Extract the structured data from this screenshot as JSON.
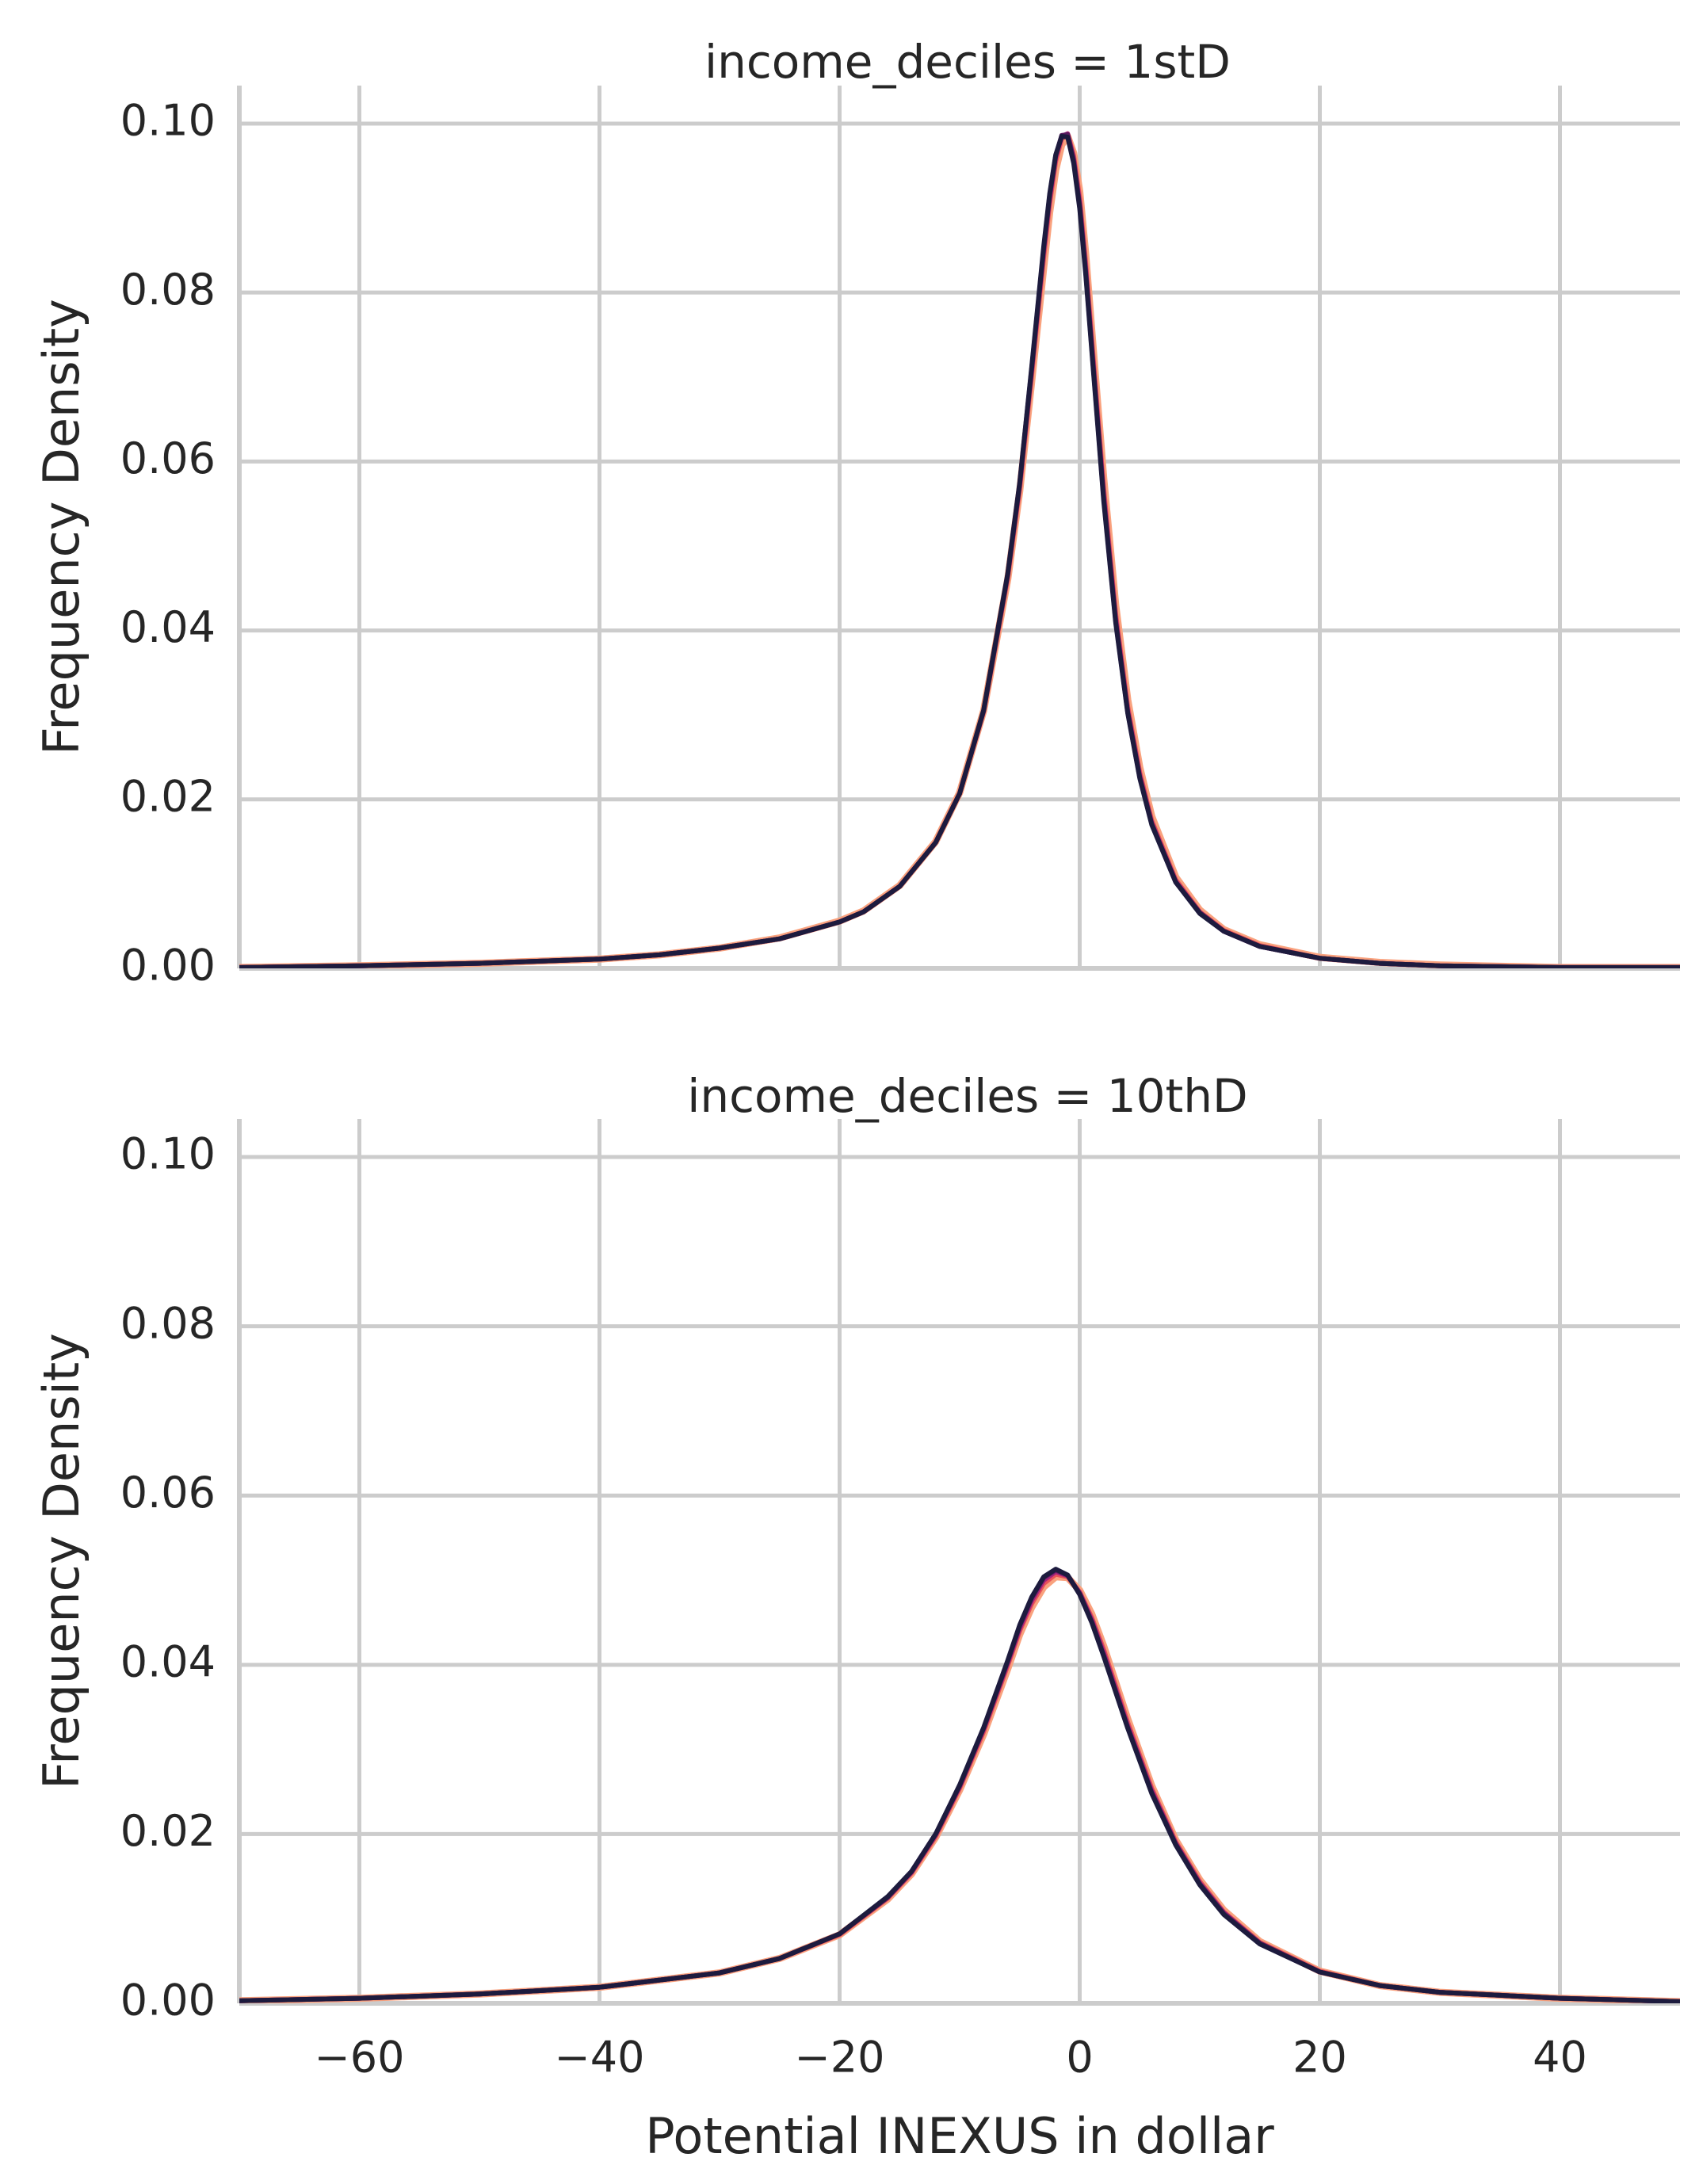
{
  "chart_data": {
    "type": "line",
    "kind": "faceted kernel density plot",
    "xlabel": "Potential INEXUS in dollar",
    "ylabel": "Frequency Density",
    "xlim": [
      -70,
      50
    ],
    "ylim": [
      0,
      0.1045
    ],
    "x_ticks": [
      -60,
      -40,
      -20,
      0,
      20,
      40
    ],
    "x_tick_labels": [
      "−60",
      "−40",
      "−20",
      "0",
      "20",
      "40"
    ],
    "y_ticks": [
      0,
      0.02,
      0.04,
      0.06,
      0.08,
      0.1
    ],
    "y_tick_labels": [
      "0.00",
      "0.02",
      "0.04",
      "0.06",
      "0.08",
      "0.10"
    ],
    "grid": true,
    "series_colors": [
      "#f9a27e",
      "#e8525a",
      "#a3237a",
      "#591c5f",
      "#1d1b3e"
    ],
    "panels": [
      {
        "title": "income_deciles = 1stD",
        "series": [
          {
            "x": [
              -70,
              -60,
              -50,
              -40,
              -35,
              -30,
              -25,
              -20,
              -18,
              -15,
              -12,
              -10,
              -8,
              -6,
              -5,
              -4,
              -3,
              -2.5,
              -2,
              -1.5,
              -1,
              -0.5,
              0,
              0.5,
              1,
              2,
              3,
              4,
              5,
              6,
              8,
              10,
              12,
              15,
              20,
              25,
              30,
              40,
              50
            ],
            "values": [
              0.0001,
              0.0003,
              0.0006,
              0.0011,
              0.0016,
              0.0024,
              0.0036,
              0.0056,
              0.0068,
              0.0098,
              0.015,
              0.0208,
              0.0305,
              0.046,
              0.0565,
              0.0695,
              0.083,
              0.0895,
              0.0945,
              0.0975,
              0.0985,
              0.0965,
              0.092,
              0.0845,
              0.0755,
              0.058,
              0.043,
              0.0318,
              0.0238,
              0.018,
              0.0108,
              0.0069,
              0.0046,
              0.0028,
              0.0013,
              0.0007,
              0.0004,
              0.0001,
              0.0001
            ]
          },
          {
            "x": [
              -70,
              -60,
              -50,
              -40,
              -35,
              -30,
              -25,
              -20,
              -18,
              -15,
              -12,
              -10,
              -8,
              -6,
              -5,
              -4,
              -3,
              -2.5,
              -2,
              -1.5,
              -1,
              -0.5,
              0,
              0.5,
              1,
              2,
              3,
              4,
              5,
              6,
              8,
              10,
              12,
              15,
              20,
              25,
              30,
              40,
              50
            ],
            "values": [
              0.0001,
              0.0003,
              0.0006,
              0.0011,
              0.0016,
              0.0024,
              0.0035,
              0.0055,
              0.0067,
              0.0097,
              0.0149,
              0.0207,
              0.0304,
              0.0462,
              0.0568,
              0.0702,
              0.0842,
              0.0905,
              0.0955,
              0.0982,
              0.0988,
              0.0962,
              0.0912,
              0.0835,
              0.0745,
              0.0568,
              0.042,
              0.031,
              0.0232,
              0.0175,
              0.0105,
              0.0067,
              0.0045,
              0.0027,
              0.0012,
              0.0006,
              0.0003,
              0.0001,
              0.0001
            ]
          },
          {
            "x": [
              -70,
              -60,
              -50,
              -40,
              -35,
              -30,
              -25,
              -20,
              -18,
              -15,
              -12,
              -10,
              -8,
              -6,
              -5,
              -4,
              -3,
              -2.5,
              -2,
              -1.5,
              -1,
              -0.5,
              0,
              0.5,
              1,
              2,
              3,
              4,
              5,
              6,
              8,
              10,
              12,
              15,
              20,
              25,
              30,
              40,
              50
            ],
            "values": [
              0.0001,
              0.0003,
              0.0006,
              0.0011,
              0.0016,
              0.0024,
              0.0035,
              0.0055,
              0.0067,
              0.0097,
              0.0149,
              0.0207,
              0.0305,
              0.0465,
              0.0572,
              0.0708,
              0.085,
              0.0912,
              0.096,
              0.0985,
              0.0988,
              0.0958,
              0.0905,
              0.0828,
              0.0738,
              0.056,
              0.0414,
              0.0305,
              0.0228,
              0.0172,
              0.0103,
              0.0066,
              0.0044,
              0.0026,
              0.0012,
              0.0006,
              0.0003,
              0.0001,
              0.0001
            ]
          },
          {
            "x": [
              -70,
              -60,
              -50,
              -40,
              -35,
              -30,
              -25,
              -20,
              -18,
              -15,
              -12,
              -10,
              -8,
              -6,
              -5,
              -4,
              -3,
              -2.5,
              -2,
              -1.5,
              -1,
              -0.5,
              0,
              0.5,
              1,
              2,
              3,
              4,
              5,
              6,
              8,
              10,
              12,
              15,
              20,
              25,
              30,
              40,
              50
            ],
            "values": [
              0.0001,
              0.0003,
              0.0006,
              0.0011,
              0.0016,
              0.0024,
              0.0035,
              0.0055,
              0.0067,
              0.0097,
              0.0149,
              0.0207,
              0.0305,
              0.0466,
              0.0574,
              0.071,
              0.0852,
              0.0915,
              0.0962,
              0.0986,
              0.0987,
              0.0956,
              0.0902,
              0.0824,
              0.0734,
              0.0556,
              0.0411,
              0.0303,
              0.0226,
              0.0171,
              0.0102,
              0.0066,
              0.0044,
              0.0026,
              0.0012,
              0.0006,
              0.0003,
              0.0001,
              0.0001
            ]
          },
          {
            "x": [
              -70,
              -60,
              -50,
              -40,
              -35,
              -30,
              -25,
              -20,
              -18,
              -15,
              -12,
              -10,
              -8,
              -6,
              -5,
              -4,
              -3,
              -2.5,
              -2,
              -1.5,
              -1,
              -0.5,
              0,
              0.5,
              1,
              2,
              3,
              4,
              5,
              6,
              8,
              10,
              12,
              15,
              20,
              25,
              30,
              40,
              50
            ],
            "values": [
              0.0001,
              0.0003,
              0.0006,
              0.0011,
              0.0016,
              0.0024,
              0.0035,
              0.0055,
              0.0067,
              0.0097,
              0.0149,
              0.0207,
              0.0306,
              0.0467,
              0.0575,
              0.0712,
              0.0855,
              0.0917,
              0.0963,
              0.0985,
              0.0984,
              0.0953,
              0.0899,
              0.0821,
              0.0731,
              0.0553,
              0.0409,
              0.0302,
              0.0225,
              0.017,
              0.0102,
              0.0065,
              0.0044,
              0.0026,
              0.0012,
              0.0006,
              0.0003,
              0.0001,
              0.0001
            ]
          }
        ]
      },
      {
        "title": "income_deciles = 10thD",
        "series": [
          {
            "x": [
              -70,
              -60,
              -50,
              -40,
              -30,
              -25,
              -20,
              -16,
              -14,
              -12,
              -10,
              -8,
              -6,
              -5,
              -4,
              -3,
              -2,
              -1,
              0,
              1,
              2,
              4,
              6,
              8,
              10,
              12,
              15,
              20,
              25,
              30,
              40,
              50
            ],
            "values": [
              0.0003,
              0.0006,
              0.0011,
              0.0019,
              0.0036,
              0.0053,
              0.0081,
              0.0123,
              0.0153,
              0.0196,
              0.0252,
              0.0318,
              0.0395,
              0.0436,
              0.0468,
              0.0492,
              0.0504,
              0.0503,
              0.0488,
              0.046,
              0.0422,
              0.0336,
              0.0257,
              0.0193,
              0.0146,
              0.011,
              0.0073,
              0.0038,
              0.0021,
              0.0013,
              0.0006,
              0.0002
            ]
          },
          {
            "x": [
              -70,
              -60,
              -50,
              -40,
              -30,
              -25,
              -20,
              -16,
              -14,
              -12,
              -10,
              -8,
              -6,
              -5,
              -4,
              -3,
              -2,
              -1,
              0,
              1,
              2,
              4,
              6,
              8,
              10,
              12,
              15,
              20,
              25,
              30,
              40,
              50
            ],
            "values": [
              0.0003,
              0.0006,
              0.0011,
              0.0019,
              0.0036,
              0.0053,
              0.0081,
              0.0124,
              0.0154,
              0.0197,
              0.0254,
              0.0321,
              0.0399,
              0.044,
              0.0472,
              0.0496,
              0.0507,
              0.0504,
              0.0486,
              0.0456,
              0.0418,
              0.0332,
              0.0254,
              0.0191,
              0.0144,
              0.0108,
              0.0072,
              0.0038,
              0.0021,
              0.0013,
              0.0006,
              0.0002
            ]
          },
          {
            "x": [
              -70,
              -60,
              -50,
              -40,
              -30,
              -25,
              -20,
              -16,
              -14,
              -12,
              -10,
              -8,
              -6,
              -5,
              -4,
              -3,
              -2,
              -1,
              0,
              1,
              2,
              4,
              6,
              8,
              10,
              12,
              15,
              20,
              25,
              30,
              40,
              50
            ],
            "values": [
              0.0003,
              0.0006,
              0.0011,
              0.0019,
              0.0036,
              0.0053,
              0.0082,
              0.0125,
              0.0155,
              0.0199,
              0.0256,
              0.0324,
              0.0402,
              0.0443,
              0.0476,
              0.05,
              0.051,
              0.0505,
              0.0485,
              0.0453,
              0.0414,
              0.0328,
              0.0251,
              0.0189,
              0.0142,
              0.0107,
              0.0071,
              0.0037,
              0.0021,
              0.0013,
              0.0006,
              0.0002
            ]
          },
          {
            "x": [
              -70,
              -60,
              -50,
              -40,
              -30,
              -25,
              -20,
              -16,
              -14,
              -12,
              -10,
              -8,
              -6,
              -5,
              -4,
              -3,
              -2,
              -1,
              0,
              1,
              2,
              4,
              6,
              8,
              10,
              12,
              15,
              20,
              25,
              30,
              40,
              50
            ],
            "values": [
              0.0003,
              0.0006,
              0.0011,
              0.0019,
              0.0036,
              0.0053,
              0.0082,
              0.0125,
              0.0156,
              0.02,
              0.0257,
              0.0325,
              0.0404,
              0.0446,
              0.0479,
              0.0503,
              0.0512,
              0.0506,
              0.0484,
              0.0451,
              0.0411,
              0.0326,
              0.0249,
              0.0188,
              0.0141,
              0.0106,
              0.0071,
              0.0037,
              0.0021,
              0.0013,
              0.0006,
              0.0002
            ]
          },
          {
            "x": [
              -70,
              -60,
              -50,
              -40,
              -30,
              -25,
              -20,
              -16,
              -14,
              -12,
              -10,
              -8,
              -6,
              -5,
              -4,
              -3,
              -2,
              -1,
              0,
              1,
              2,
              4,
              6,
              8,
              10,
              12,
              15,
              20,
              25,
              30,
              40,
              50
            ],
            "values": [
              0.0003,
              0.0006,
              0.0011,
              0.0019,
              0.0036,
              0.0053,
              0.0082,
              0.0126,
              0.0156,
              0.02,
              0.0258,
              0.0326,
              0.0405,
              0.0447,
              0.048,
              0.0504,
              0.0513,
              0.0506,
              0.0483,
              0.045,
              0.041,
              0.0325,
              0.0248,
              0.0187,
              0.014,
              0.0105,
              0.007,
              0.0037,
              0.0021,
              0.0013,
              0.0006,
              0.0002
            ]
          }
        ]
      }
    ]
  }
}
